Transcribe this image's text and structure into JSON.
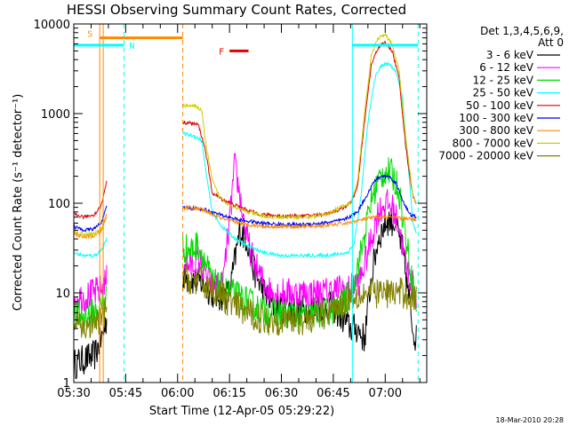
{
  "chart_data": {
    "type": "line",
    "title": "HESSI Observing Summary Count Rates, Corrected",
    "xlabel": "Start Time (12-Apr-05 05:29:22)",
    "ylabel": "Corrected Count Rate (s⁻¹ detector⁻¹)",
    "y_scale": "log",
    "ylim": [
      1,
      10000
    ],
    "xlim_minutes": [
      0,
      102
    ],
    "x_ticks": [
      {
        "t": 0,
        "label": "05:30"
      },
      {
        "t": 15,
        "label": "05:45"
      },
      {
        "t": 30,
        "label": "06:00"
      },
      {
        "t": 45,
        "label": "06:15"
      },
      {
        "t": 60,
        "label": "06:30"
      },
      {
        "t": 75,
        "label": "06:45"
      },
      {
        "t": 90,
        "label": "07:00"
      }
    ],
    "y_ticks": [
      {
        "v": 1,
        "label": "1"
      },
      {
        "v": 10,
        "label": "10"
      },
      {
        "v": 100,
        "label": "100"
      },
      {
        "v": 1000,
        "label": "1000"
      },
      {
        "v": 10000,
        "label": "10000"
      }
    ],
    "legend": {
      "position": "right",
      "header": [
        "Det 1,3,4,5,6,9,",
        "Att 0"
      ]
    },
    "series": [
      {
        "name": "3 - 6 keV",
        "color": "#000000",
        "style": "noisy",
        "points": [
          [
            0,
            1.6
          ],
          [
            3,
            1.8
          ],
          [
            6,
            2
          ],
          [
            8,
            3
          ],
          [
            9.5,
            5
          ]
        ],
        "points2": [
          [
            31.5,
            15
          ],
          [
            34,
            14
          ],
          [
            37,
            13
          ],
          [
            40,
            10
          ],
          [
            42,
            9
          ],
          [
            45,
            10
          ],
          [
            48,
            50
          ],
          [
            50,
            40
          ],
          [
            52,
            18
          ],
          [
            54,
            12
          ],
          [
            56,
            9
          ],
          [
            58,
            7
          ],
          [
            62,
            6.5
          ],
          [
            66,
            6.5
          ],
          [
            70,
            7
          ],
          [
            75,
            7
          ],
          [
            80,
            4
          ],
          [
            82,
            4
          ],
          [
            84,
            3
          ],
          [
            86,
            15
          ],
          [
            88,
            40
          ],
          [
            90,
            60
          ],
          [
            91,
            65
          ],
          [
            93,
            60
          ],
          [
            95,
            30
          ],
          [
            97,
            8
          ],
          [
            98,
            4
          ],
          [
            99,
            3
          ]
        ]
      },
      {
        "name": "6 - 12 keV",
        "color": "#ff00ff",
        "style": "noisy",
        "points": [
          [
            0,
            9
          ],
          [
            3,
            9
          ],
          [
            6,
            10
          ],
          [
            8,
            11
          ],
          [
            9.5,
            14
          ]
        ],
        "points2": [
          [
            31.5,
            22
          ],
          [
            34,
            20
          ],
          [
            36,
            24
          ],
          [
            38,
            16
          ],
          [
            40,
            12
          ],
          [
            43,
            12
          ],
          [
            45,
            60
          ],
          [
            46.5,
            270
          ],
          [
            48,
            120
          ],
          [
            50,
            40
          ],
          [
            52,
            22
          ],
          [
            54,
            15
          ],
          [
            56,
            11
          ],
          [
            58,
            10
          ],
          [
            63,
            10
          ],
          [
            67,
            10
          ],
          [
            72,
            10
          ],
          [
            76,
            11
          ],
          [
            80,
            11
          ],
          [
            83,
            15
          ],
          [
            86,
            40
          ],
          [
            88,
            80
          ],
          [
            90,
            100
          ],
          [
            92,
            90
          ],
          [
            94,
            55
          ],
          [
            96,
            20
          ],
          [
            98,
            12
          ],
          [
            99,
            10
          ]
        ]
      },
      {
        "name": "12 - 25 keV",
        "color": "#00dd00",
        "style": "noisy",
        "points": [
          [
            0,
            5.5
          ],
          [
            3,
            5.5
          ],
          [
            6,
            6
          ],
          [
            8,
            7
          ],
          [
            9.5,
            10
          ]
        ],
        "points2": [
          [
            31.5,
            32
          ],
          [
            34,
            30
          ],
          [
            36,
            35
          ],
          [
            38,
            22
          ],
          [
            40,
            13
          ],
          [
            43,
            11
          ],
          [
            45,
            10
          ],
          [
            48,
            9
          ],
          [
            50,
            8
          ],
          [
            54,
            6.5
          ],
          [
            58,
            6
          ],
          [
            63,
            5.5
          ],
          [
            68,
            5.5
          ],
          [
            73,
            6
          ],
          [
            77,
            7
          ],
          [
            80,
            10
          ],
          [
            83,
            28
          ],
          [
            86,
            110
          ],
          [
            88,
            180
          ],
          [
            90,
            230
          ],
          [
            92,
            210
          ],
          [
            94,
            140
          ],
          [
            96,
            40
          ],
          [
            98,
            12
          ],
          [
            99,
            7
          ]
        ]
      },
      {
        "name": "25 - 50 keV",
        "color": "#00ffff",
        "style": "smooth",
        "points": [
          [
            0,
            28
          ],
          [
            3,
            26
          ],
          [
            6,
            26
          ],
          [
            8,
            30
          ],
          [
            9.5,
            40
          ]
        ],
        "points2": [
          [
            31.5,
            600
          ],
          [
            33,
            580
          ],
          [
            35,
            560
          ],
          [
            37,
            500
          ],
          [
            38,
            250
          ],
          [
            40,
            80
          ],
          [
            42,
            60
          ],
          [
            45,
            45
          ],
          [
            49,
            35
          ],
          [
            55,
            28
          ],
          [
            60,
            26
          ],
          [
            66,
            26
          ],
          [
            72,
            26
          ],
          [
            76,
            27
          ],
          [
            79,
            28
          ],
          [
            81,
            35
          ],
          [
            83,
            120
          ],
          [
            85,
            800
          ],
          [
            87,
            2500
          ],
          [
            89,
            3500
          ],
          [
            91,
            3600
          ],
          [
            93,
            3000
          ],
          [
            95,
            1500
          ],
          [
            96.5,
            300
          ],
          [
            98,
            60
          ],
          [
            99,
            45
          ]
        ]
      },
      {
        "name": "50 - 100 keV",
        "color": "#dd0000",
        "style": "smooth",
        "points": [
          [
            0,
            75
          ],
          [
            3,
            70
          ],
          [
            6,
            75
          ],
          [
            8,
            95
          ],
          [
            9.5,
            180
          ]
        ],
        "points2": [
          [
            31.5,
            800
          ],
          [
            34,
            780
          ],
          [
            36,
            750
          ],
          [
            38,
            400
          ],
          [
            40,
            130
          ],
          [
            43,
            110
          ],
          [
            48,
            90
          ],
          [
            54,
            75
          ],
          [
            60,
            72
          ],
          [
            66,
            72
          ],
          [
            72,
            75
          ],
          [
            77,
            85
          ],
          [
            80,
            100
          ],
          [
            82,
            150
          ],
          [
            84,
            800
          ],
          [
            86,
            3500
          ],
          [
            88,
            5500
          ],
          [
            90,
            6200
          ],
          [
            92,
            5000
          ],
          [
            94,
            2500
          ],
          [
            96,
            400
          ],
          [
            98,
            120
          ],
          [
            99,
            100
          ]
        ]
      },
      {
        "name": "100 - 300 keV",
        "color": "#0000ee",
        "style": "smooth",
        "points": [
          [
            0,
            55
          ],
          [
            3,
            50
          ],
          [
            6,
            52
          ],
          [
            8,
            62
          ],
          [
            9.5,
            90
          ]
        ],
        "points2": [
          [
            31.5,
            90
          ],
          [
            35,
            88
          ],
          [
            38,
            85
          ],
          [
            42,
            75
          ],
          [
            48,
            65
          ],
          [
            54,
            60
          ],
          [
            60,
            58
          ],
          [
            66,
            58
          ],
          [
            72,
            60
          ],
          [
            78,
            65
          ],
          [
            82,
            80
          ],
          [
            85,
            130
          ],
          [
            87,
            180
          ],
          [
            89,
            200
          ],
          [
            91,
            200
          ],
          [
            93,
            170
          ],
          [
            95,
            110
          ],
          [
            97,
            75
          ],
          [
            99,
            70
          ]
        ]
      },
      {
        "name": "300 - 800 keV",
        "color": "#ff8800",
        "style": "smooth",
        "points": [
          [
            0,
            45
          ],
          [
            3,
            42
          ],
          [
            6,
            43
          ],
          [
            8,
            50
          ],
          [
            9.5,
            75
          ]
        ],
        "points2": [
          [
            31.5,
            88
          ],
          [
            34,
            90
          ],
          [
            37,
            85
          ],
          [
            40,
            75
          ],
          [
            44,
            65
          ],
          [
            50,
            58
          ],
          [
            56,
            55
          ],
          [
            62,
            55
          ],
          [
            68,
            55
          ],
          [
            74,
            57
          ],
          [
            79,
            60
          ],
          [
            83,
            65
          ],
          [
            87,
            70
          ],
          [
            91,
            70
          ],
          [
            95,
            68
          ],
          [
            99,
            65
          ]
        ]
      },
      {
        "name": "800 - 7000 keV",
        "color": "#cccc00",
        "style": "smooth",
        "points": [
          [
            0,
            48
          ],
          [
            3,
            45
          ],
          [
            6,
            46
          ],
          [
            8,
            52
          ],
          [
            9.5,
            70
          ]
        ],
        "points2": [
          [
            31.5,
            1200
          ],
          [
            33,
            1250
          ],
          [
            35,
            1200
          ],
          [
            37,
            1100
          ],
          [
            38,
            500
          ],
          [
            40,
            180
          ],
          [
            42,
            120
          ],
          [
            45,
            95
          ],
          [
            50,
            80
          ],
          [
            56,
            70
          ],
          [
            62,
            70
          ],
          [
            68,
            70
          ],
          [
            73,
            75
          ],
          [
            77,
            90
          ],
          [
            80,
            100
          ],
          [
            82,
            170
          ],
          [
            84,
            1000
          ],
          [
            86,
            4500
          ],
          [
            88,
            7000
          ],
          [
            90,
            7500
          ],
          [
            92,
            6000
          ],
          [
            94,
            3000
          ],
          [
            96,
            500
          ],
          [
            98,
            120
          ],
          [
            99,
            100
          ]
        ]
      },
      {
        "name": "7000 - 20000 keV",
        "color": "#808000",
        "style": "noisy",
        "points": [
          [
            0,
            4.5
          ],
          [
            3,
            4
          ],
          [
            6,
            4.5
          ],
          [
            8,
            5
          ],
          [
            9.5,
            7
          ]
        ],
        "points2": [
          [
            31.5,
            15
          ],
          [
            34,
            14
          ],
          [
            37,
            13
          ],
          [
            40,
            11
          ],
          [
            43,
            9
          ],
          [
            47,
            7
          ],
          [
            50,
            6
          ],
          [
            55,
            5
          ],
          [
            60,
            5
          ],
          [
            65,
            5
          ],
          [
            70,
            5.2
          ],
          [
            75,
            6.5
          ],
          [
            78,
            8
          ],
          [
            80,
            9
          ],
          [
            83,
            10
          ],
          [
            87,
            10
          ],
          [
            91,
            10
          ],
          [
            95,
            10
          ],
          [
            98,
            9
          ],
          [
            99,
            8
          ]
        ]
      }
    ],
    "annotations": {
      "S": {
        "label": "S",
        "t_start": 7.5,
        "t_end": 31.5,
        "value": 7000,
        "color": "#ff8800"
      },
      "F": {
        "label": "F",
        "t_start": 45,
        "t_end": 50.5,
        "value": 5000,
        "color": "#dd0000"
      },
      "N1": {
        "label": "N",
        "t_start": 0,
        "t_end": 14.5,
        "value": 5800,
        "color": "#00ffff"
      },
      "N2": {
        "t_start": 80.5,
        "t_end": 99.5,
        "value": 5800,
        "color": "#00ffff"
      }
    },
    "vlines": [
      {
        "t": 7.5,
        "color": "#ff8800",
        "dash": false
      },
      {
        "t": 8.5,
        "color": "#ff8800",
        "dash": false
      },
      {
        "t": 14.5,
        "color": "#00ffff",
        "dash": true
      },
      {
        "t": 31.5,
        "color": "#ff8800",
        "dash": true
      },
      {
        "t": 80.5,
        "color": "#00ffff",
        "dash": false
      },
      {
        "t": 99.5,
        "color": "#00ffff",
        "dash": true
      }
    ],
    "footer": "18-Mar-2010 20:28"
  }
}
